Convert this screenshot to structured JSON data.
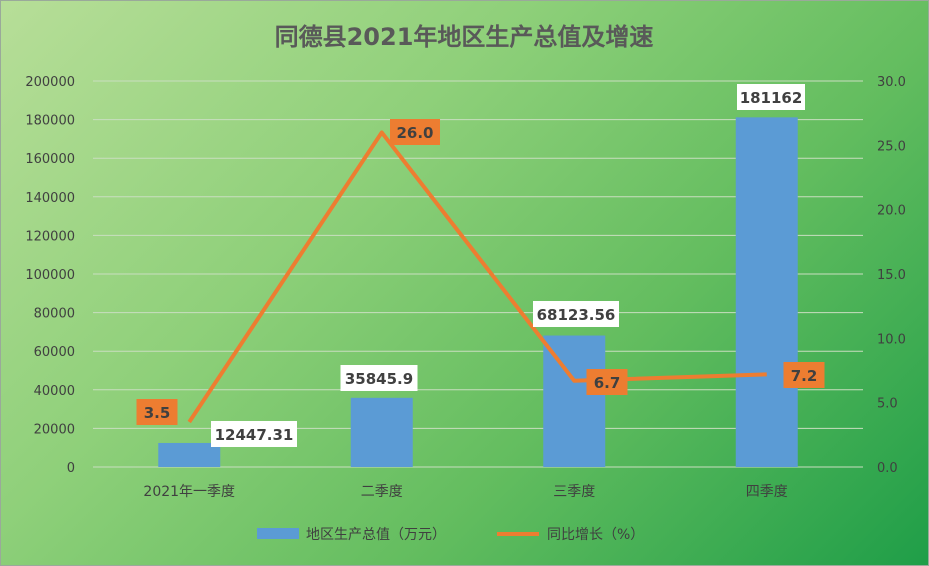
{
  "chart_data": {
    "type": "bar",
    "title": "同德县2021年地区生产总值及增速",
    "categories": [
      "2021年一季度",
      "二季度",
      "三季度",
      "四季度"
    ],
    "series": [
      {
        "name": "地区生产总值（万元）",
        "type": "bar",
        "axis": "left",
        "values": [
          12447.31,
          35845.9,
          68123.56,
          181162
        ],
        "labels": [
          "12447.31",
          "35845.9",
          "68123.56",
          "181162"
        ]
      },
      {
        "name": "同比增长（%）",
        "type": "line",
        "axis": "right",
        "values": [
          3.5,
          26.0,
          6.7,
          7.2
        ],
        "labels": [
          "3.5",
          "26.0",
          "6.7",
          "7.2"
        ]
      }
    ],
    "left_axis": {
      "ylim": [
        0,
        200000
      ],
      "ticks": [
        "0",
        "20000",
        "40000",
        "60000",
        "80000",
        "100000",
        "120000",
        "140000",
        "160000",
        "180000",
        "200000"
      ]
    },
    "right_axis": {
      "ylim": [
        0,
        30
      ],
      "ticks": [
        "0.0",
        "5.0",
        "10.0",
        "15.0",
        "20.0",
        "25.0",
        "30.0"
      ]
    },
    "grid": true,
    "legend_position": "bottom",
    "colors": {
      "bar": "#5b9bd5",
      "line": "#ed7d31",
      "grid": "#c9dec0",
      "title": "#595959",
      "tick": "#404040"
    }
  }
}
